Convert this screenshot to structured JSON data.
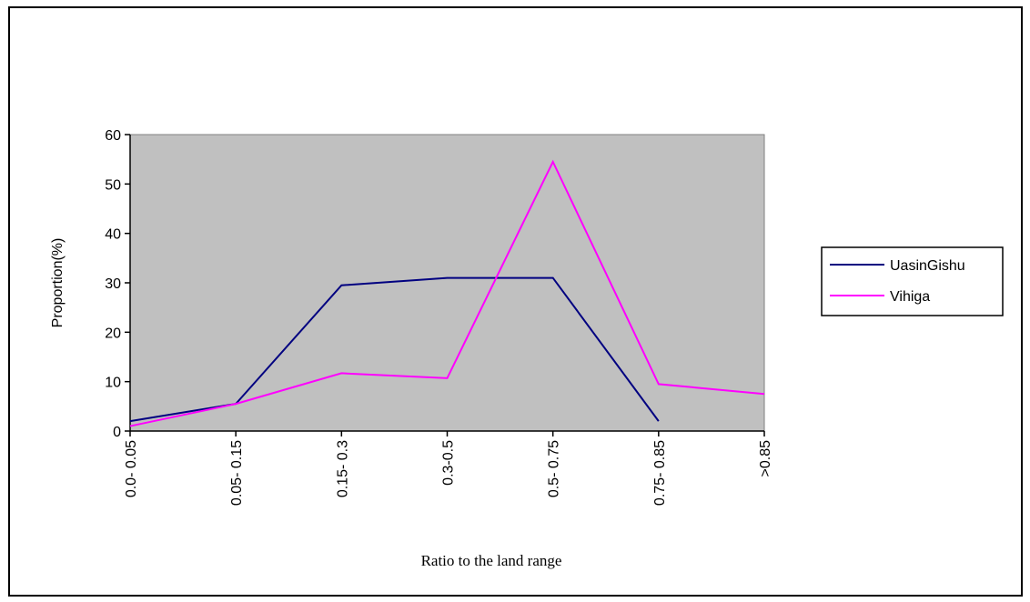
{
  "chart_data": {
    "type": "line",
    "x_label": "Ratio to the land range",
    "y_label": "Proportion(%)",
    "categories": [
      "0.0- 0.05",
      "0.05- 0.15",
      "0.15- 0.3",
      "0.3-0.5",
      "0.5- 0.75",
      "0.75- 0.85",
      ">0.85"
    ],
    "series": [
      {
        "name": "UasinGishu",
        "color": "#000080",
        "values": [
          2,
          5.5,
          29.5,
          31,
          31,
          2,
          null
        ]
      },
      {
        "name": "Vihiga",
        "color": "#ff00ff",
        "values": [
          1,
          5.5,
          11.7,
          10.7,
          54.5,
          9.5,
          7.5
        ]
      }
    ],
    "ylim": [
      0,
      60
    ],
    "yticks": [
      0,
      10,
      20,
      30,
      40,
      50,
      60
    ],
    "plot_background": "#c0c0c0",
    "legend": "right"
  }
}
